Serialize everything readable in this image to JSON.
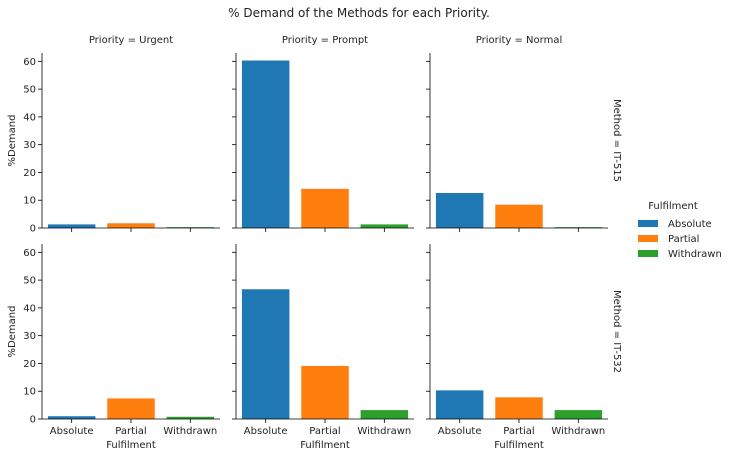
{
  "chart_data": {
    "type": "bar",
    "title": "% Demand of the Methods for each Priority.",
    "col_facet_labels": [
      "Priority = Urgent",
      "Priority = Prompt",
      "Priority = Normal"
    ],
    "row_facet_labels": [
      "Method = IT-515",
      "Method = IT-532"
    ],
    "categories": [
      "Absolute",
      "Partial",
      "Withdrawn"
    ],
    "xlabel": "Fulfilment",
    "ylabel": "%Demand",
    "ylim": [
      0,
      63
    ],
    "yticks": [
      0,
      10,
      20,
      30,
      40,
      50,
      60
    ],
    "grid": false,
    "legend": {
      "title": "Fulfilment",
      "placement": "right",
      "entries": [
        "Absolute",
        "Partial",
        "Withdrawn"
      ]
    },
    "colors": [
      "#1f77b4",
      "#ff7f0e",
      "#2ca02c"
    ],
    "panels": [
      {
        "row": 0,
        "col": 0,
        "values": [
          1.3,
          1.7,
          0.3
        ]
      },
      {
        "row": 0,
        "col": 1,
        "values": [
          60.3,
          14.1,
          1.3
        ]
      },
      {
        "row": 0,
        "col": 2,
        "values": [
          12.6,
          8.4,
          0.3
        ]
      },
      {
        "row": 1,
        "col": 0,
        "values": [
          1.0,
          7.4,
          0.8
        ]
      },
      {
        "row": 1,
        "col": 1,
        "values": [
          46.7,
          19.1,
          3.2
        ]
      },
      {
        "row": 1,
        "col": 2,
        "values": [
          10.3,
          7.8,
          3.2
        ]
      }
    ]
  }
}
